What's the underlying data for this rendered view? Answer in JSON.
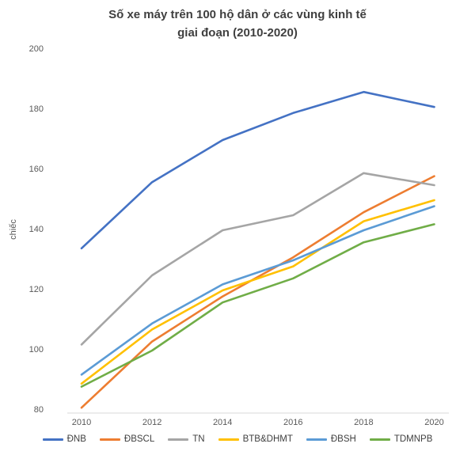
{
  "chart_data": {
    "type": "line",
    "title": "Số xe máy trên 100 hộ dân ở các vùng kinh tế giai đoạn (2010-2020)",
    "title_lines": [
      "Số xe máy trên 100 hộ dân ở các vùng kinh tế",
      "giai đoạn (2010-2020)"
    ],
    "xlabel": "",
    "ylabel": "chiếc",
    "categories": [
      "2010",
      "2012",
      "2014",
      "2016",
      "2018",
      "2020"
    ],
    "ylim": [
      80,
      200
    ],
    "yticks": [
      80,
      100,
      120,
      140,
      160,
      180,
      200
    ],
    "grid": false,
    "legend_position": "bottom",
    "series": [
      {
        "name": "ĐNB",
        "color": "#4472C4",
        "values": [
          134,
          156,
          170,
          179,
          186,
          181
        ]
      },
      {
        "name": "ĐBSCL",
        "color": "#ED7D31",
        "values": [
          81,
          103,
          118,
          131,
          146,
          158
        ]
      },
      {
        "name": "TN",
        "color": "#A5A5A5",
        "values": [
          102,
          125,
          140,
          145,
          159,
          155
        ]
      },
      {
        "name": "BTB&DHMT",
        "color": "#FFC000",
        "values": [
          89,
          107,
          120,
          128,
          143,
          150
        ]
      },
      {
        "name": "ĐBSH",
        "color": "#5B9BD5",
        "values": [
          92,
          109,
          122,
          130,
          140,
          148
        ]
      },
      {
        "name": "TDMNPB",
        "color": "#70AD47",
        "values": [
          88,
          100,
          116,
          124,
          136,
          142
        ]
      }
    ],
    "axis_line_color": "#d9d9d9",
    "axis_text_color": "#595959",
    "title_color": "#3f3f3f"
  }
}
